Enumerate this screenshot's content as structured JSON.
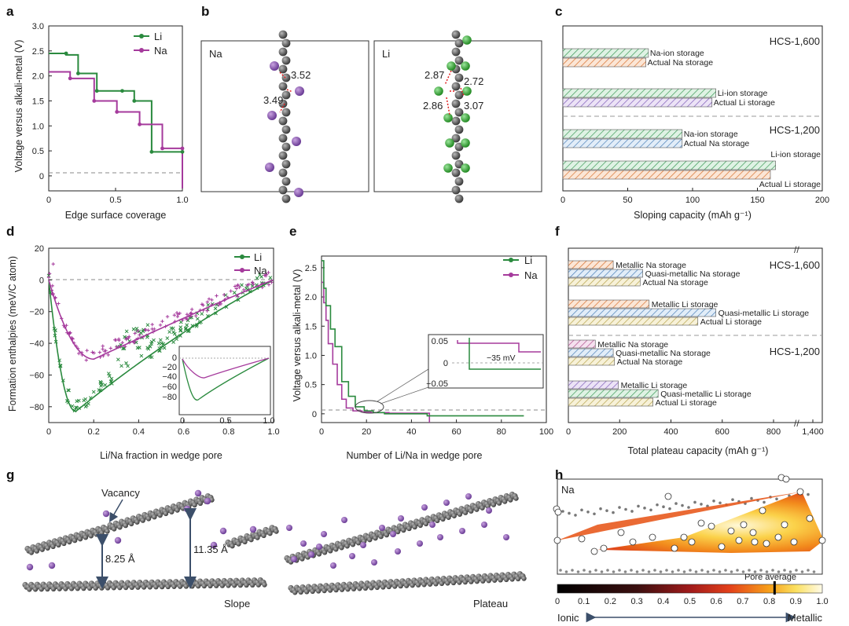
{
  "panel_labels": {
    "a": "a",
    "b": "b",
    "c": "c",
    "d": "d",
    "e": "e",
    "f": "f",
    "g": "g",
    "h": "h"
  },
  "colors": {
    "li": "#2a8a3e",
    "na": "#a53a9c",
    "atom_c": "#4a4a4a",
    "atom_na": "#8a4fb0",
    "atom_li": "#3daa3d",
    "arrow": "#e02020"
  },
  "panel_a": {
    "xlabel": "Edge surface coverage",
    "ylabel": "Voltage versus alkali-metal (V)",
    "xticks": [
      "0",
      "0.5",
      "1.0"
    ],
    "yticks": [
      "0",
      "0.5",
      "1.0",
      "1.5",
      "2.0",
      "2.5",
      "3.0"
    ],
    "legend": [
      "Li",
      "Na"
    ]
  },
  "panel_b": {
    "left_title": "Na",
    "right_title": "Li",
    "na_dist": [
      "3.52",
      "3.49"
    ],
    "li_dist": [
      "2.87",
      "2.72",
      "2.86",
      "3.07"
    ]
  },
  "panel_c": {
    "xlabel": "Sloping capacity (mAh g⁻¹)",
    "xticks": [
      "0",
      "50",
      "100",
      "150",
      "200"
    ],
    "group_top": "HCS-1,600",
    "group_bottom": "HCS-1,200",
    "bars": [
      {
        "label": "Na-ion storage",
        "value": 66
      },
      {
        "label": "Actual Na storage",
        "value": 64
      },
      {
        "label": "Li-ion storage",
        "value": 118
      },
      {
        "label": "Actual Li storage",
        "value": 115
      },
      {
        "label": "Na-ion storage",
        "value": 92
      },
      {
        "label": "Actual Na storage",
        "value": 92
      },
      {
        "label": "Li-ion storage",
        "value": 164
      },
      {
        "label": "Actual Li storage",
        "value": 160
      }
    ]
  },
  "panel_d": {
    "xlabel": "Li/Na fraction in wedge pore",
    "ylabel": "Formation enthalpies (meV/C atom)",
    "xticks": [
      "0",
      "0.2",
      "0.4",
      "0.6",
      "0.8",
      "1.0"
    ],
    "yticks": [
      "20",
      "0",
      "−20",
      "−40",
      "−60",
      "−80"
    ],
    "legend": [
      "Li",
      "Na"
    ],
    "inset": {
      "xticks": [
        "0",
        "0.5",
        "1.0"
      ],
      "yticks": [
        "0",
        "−20",
        "−40",
        "−60",
        "−80"
      ]
    }
  },
  "panel_e": {
    "xlabel": "Number of Li/Na in wedge pore",
    "ylabel": "Voltage versus alkali-metal (V)",
    "xticks": [
      "0",
      "20",
      "40",
      "60",
      "80",
      "100"
    ],
    "yticks": [
      "0",
      "0.5",
      "1.0",
      "1.5",
      "2.0",
      "2.5"
    ],
    "legend": [
      "Li",
      "Na"
    ],
    "inset": {
      "yticks": [
        "0.05",
        "0",
        "−0.05"
      ],
      "annotation": "−35 mV"
    }
  },
  "panel_f": {
    "xlabel": "Total plateau capacity (mAh g⁻¹)",
    "xticks": [
      "0",
      "200",
      "400",
      "600",
      "800",
      "1,400"
    ],
    "group_top": "HCS-1,600",
    "group_bottom": "HCS-1,200",
    "bars": [
      {
        "label": "Metallic Na storage",
        "value": 175
      },
      {
        "label": "Quasi-metallic Na storage",
        "value": 290
      },
      {
        "label": "Actual Na storage",
        "value": 280
      },
      {
        "label": "Metallic Li storage",
        "value": 315
      },
      {
        "label": "Quasi-metallic Li storage",
        "value": 575
      },
      {
        "label": "Actual Li storage",
        "value": 505
      },
      {
        "label": "Metallic Na storage",
        "value": 105
      },
      {
        "label": "Quasi-metallic Na storage",
        "value": 175
      },
      {
        "label": "Actual Na storage",
        "value": 180
      },
      {
        "label": "Metallic Li storage",
        "value": 195
      },
      {
        "label": "Quasi-metallic Li storage",
        "value": 350
      },
      {
        "label": "Actual Li storage",
        "value": 330
      }
    ]
  },
  "panel_g": {
    "vacancy": "Vacancy",
    "gap1": "8.25 Å",
    "gap2": "11.35 Å",
    "slope": "Slope",
    "plateau": "Plateau"
  },
  "panel_h": {
    "title": "Na",
    "pore_average": "Pore average",
    "pore_average_value": 0.82,
    "scale_ticks": [
      "0",
      "0.1",
      "0.2",
      "0.3",
      "0.4",
      "0.5",
      "0.6",
      "0.7",
      "0.8",
      "0.9",
      "1.0"
    ],
    "left_label": "Ionic",
    "right_label": "Metallic"
  },
  "chart_data": [
    {
      "type": "line",
      "title": "a",
      "xlabel": "Edge surface coverage",
      "ylabel": "Voltage versus alkali-metal (V)",
      "xlim": [
        0,
        1
      ],
      "ylim": [
        -0.3,
        3.0
      ],
      "series": [
        {
          "name": "Li",
          "x": [
            0,
            0.13,
            0.13,
            0.22,
            0.22,
            0.36,
            0.36,
            0.55,
            0.55,
            0.64,
            0.64,
            0.77,
            0.77,
            1.0,
            1.0
          ],
          "y": [
            2.45,
            2.45,
            2.42,
            2.42,
            2.05,
            2.05,
            1.7,
            1.7,
            1.7,
            1.7,
            1.5,
            1.5,
            0.48,
            0.48,
            -0.25
          ]
        },
        {
          "name": "Na",
          "x": [
            0,
            0.16,
            0.16,
            0.34,
            0.34,
            0.51,
            0.51,
            0.68,
            0.68,
            0.85,
            0.85,
            1.0,
            1.0
          ],
          "y": [
            2.08,
            2.08,
            1.95,
            1.95,
            1.5,
            1.5,
            1.28,
            1.28,
            1.03,
            1.03,
            0.55,
            0.55,
            -0.25
          ]
        }
      ]
    },
    {
      "type": "bar",
      "title": "c",
      "xlabel": "Sloping capacity (mAh g⁻¹)",
      "xlim": [
        0,
        200
      ],
      "categories": [
        "HCS-1,600 Na-ion storage",
        "HCS-1,600 Actual Na storage",
        "HCS-1,600 Li-ion storage",
        "HCS-1,600 Actual Li storage",
        "HCS-1,200 Na-ion storage",
        "HCS-1,200 Actual Na storage",
        "HCS-1,200 Li-ion storage",
        "HCS-1,200 Actual Li storage"
      ],
      "values": [
        66,
        64,
        118,
        115,
        92,
        92,
        164,
        160
      ]
    },
    {
      "type": "scatter",
      "title": "d",
      "xlabel": "Li/Na fraction in wedge pore",
      "ylabel": "Formation enthalpies (meV/C atom)",
      "xlim": [
        0,
        1
      ],
      "ylim": [
        -90,
        20
      ],
      "series": [
        {
          "name": "Li",
          "min_at": [
            0.12,
            -83
          ]
        },
        {
          "name": "Na",
          "min_at": [
            0.2,
            -50
          ]
        }
      ]
    },
    {
      "type": "line",
      "title": "e",
      "xlabel": "Number of Li/Na in wedge pore",
      "ylabel": "Voltage versus alkali-metal (V)",
      "xlim": [
        0,
        100
      ],
      "ylim": [
        -0.15,
        2.7
      ],
      "series": [
        {
          "name": "Li",
          "x": [
            0,
            1,
            1,
            2,
            2,
            4,
            4,
            6,
            6,
            9,
            9,
            12,
            12,
            15,
            15,
            19,
            19,
            23,
            23,
            28,
            28,
            47,
            47,
            90
          ],
          "y": [
            2.62,
            2.62,
            2.15,
            2.15,
            1.85,
            1.85,
            1.45,
            1.45,
            1.15,
            1.15,
            0.55,
            0.55,
            0.3,
            0.3,
            0.12,
            0.12,
            0.05,
            0.05,
            0.02,
            0.02,
            0.0,
            0.0,
            -0.035,
            -0.035
          ]
        },
        {
          "name": "Na",
          "x": [
            0,
            1,
            1,
            2,
            2,
            3,
            3,
            5,
            5,
            7,
            7,
            9,
            9,
            11,
            11,
            14,
            14,
            18,
            18,
            22,
            22,
            30,
            30,
            48,
            48
          ],
          "y": [
            2.25,
            2.25,
            1.9,
            1.9,
            1.6,
            1.6,
            1.2,
            1.2,
            0.85,
            0.85,
            0.5,
            0.5,
            0.25,
            0.25,
            0.1,
            0.1,
            0.05,
            0.05,
            0.03,
            0.03,
            0.02,
            0.02,
            0.01,
            0.01,
            -0.15
          ]
        }
      ]
    },
    {
      "type": "bar",
      "title": "f",
      "xlabel": "Total plateau capacity (mAh g⁻¹)",
      "categories": [
        "HCS-1,600 Metallic Na",
        "HCS-1,600 Quasi-metallic Na",
        "HCS-1,600 Actual Na",
        "HCS-1,600 Metallic Li",
        "HCS-1,600 Quasi-metallic Li",
        "HCS-1,600 Actual Li",
        "HCS-1,200 Metallic Na",
        "HCS-1,200 Quasi-metallic Na",
        "HCS-1,200 Actual Na",
        "HCS-1,200 Metallic Li",
        "HCS-1,200 Quasi-metallic Li",
        "HCS-1,200 Actual Li"
      ],
      "values": [
        175,
        290,
        280,
        315,
        575,
        505,
        105,
        175,
        180,
        195,
        350,
        330
      ]
    },
    {
      "type": "heatmap",
      "title": "h",
      "colorbar_range": [
        0,
        1
      ],
      "pore_average": 0.82
    }
  ]
}
